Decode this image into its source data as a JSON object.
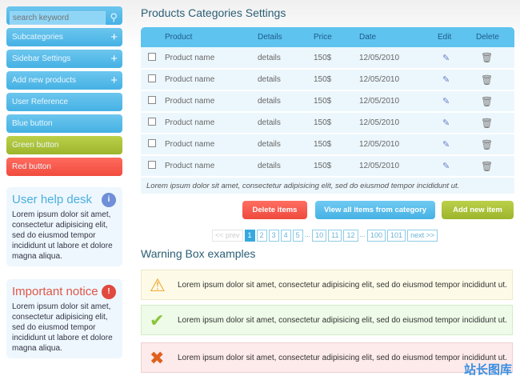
{
  "sidebar": {
    "search_placeholder": "search keyword",
    "items": [
      {
        "label": "Subcategories",
        "expandable": true
      },
      {
        "label": "Sidebar Settings",
        "expandable": true
      },
      {
        "label": "Add new products",
        "expandable": true
      },
      {
        "label": "User Reference"
      },
      {
        "label": "Blue button"
      },
      {
        "label": "Green button"
      },
      {
        "label": "Red button"
      }
    ],
    "plus": "+",
    "help": {
      "title": "User help desk",
      "text": "Lorem ipsum dolor sit amet, consectetur adipisicing elit, sed do eiusmod tempor incididunt ut labore et dolore magna aliqua.",
      "icon": "user-info-icon"
    },
    "notice": {
      "title": "Important notice",
      "text": "Lorem ipsum dolor sit amet, consectetur adipisicing elit, sed do eiusmod tempor incididunt ut labore et dolore magna aliqua.",
      "icon": "alert-icon"
    }
  },
  "main": {
    "title": "Products Categories Settings",
    "columns": [
      "Product",
      "Details",
      "Price",
      "Date",
      "Edit",
      "Delete"
    ],
    "rows": [
      {
        "product": "Product name",
        "details": "details",
        "price": "150$",
        "date": "12/05/2010"
      },
      {
        "product": "Product name",
        "details": "details",
        "price": "150$",
        "date": "12/05/2010"
      },
      {
        "product": "Product name",
        "details": "details",
        "price": "150$",
        "date": "12/05/2010"
      },
      {
        "product": "Product name",
        "details": "details",
        "price": "150$",
        "date": "12/05/2010"
      },
      {
        "product": "Product name",
        "details": "details",
        "price": "150$",
        "date": "12/05/2010"
      },
      {
        "product": "Product name",
        "details": "details",
        "price": "150$",
        "date": "12/05/2010"
      }
    ],
    "footer": "Lorem ipsum dolor sit amet, consectetur adipisicing elit, sed do eiusmod tempor incididunt ut.",
    "buttons": {
      "delete": "Delete items",
      "view": "View all items from category",
      "add": "Add new item"
    },
    "pagination": {
      "prev": "<< prev",
      "pages": [
        "1",
        "2",
        "3",
        "4",
        "5",
        "...",
        "10",
        "11",
        "12",
        "...",
        "100",
        "101"
      ],
      "current": "1",
      "next": "next >>"
    },
    "warning_title": "Warning Box examples",
    "warnings": [
      {
        "type": "warning",
        "text": "Lorem ipsum dolor sit amet, consectetur adipisicing elit, sed do eiusmod tempor incididunt ut."
      },
      {
        "type": "success",
        "text": "Lorem ipsum dolor sit amet, consectetur adipisicing elit, sed do eiusmod tempor incididunt ut."
      },
      {
        "type": "error",
        "text": "Lorem ipsum dolor sit amet, consectetur adipisicing elit, sed do eiusmod tempor incididunt ut."
      }
    ]
  },
  "colors": {
    "blue": "#45b1e4",
    "green": "#9cb52b",
    "red": "#f04c3e",
    "title": "#2c5f75"
  },
  "watermark": "站长图库"
}
